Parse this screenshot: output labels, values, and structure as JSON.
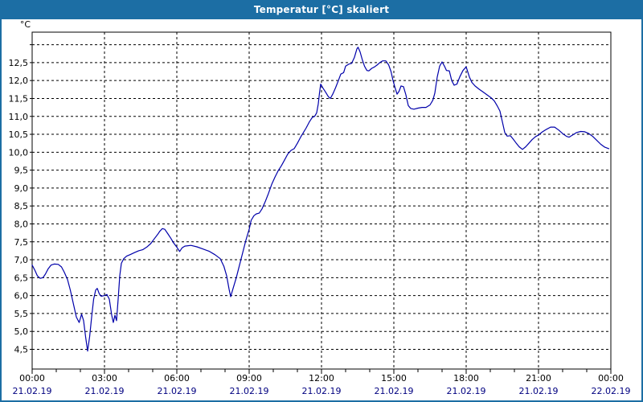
{
  "window": {
    "title": "Temperatur [°C] skaliert"
  },
  "colors": {
    "window_chrome": "#1c6ea4",
    "titlebar_text": "#ffffff",
    "plot_background": "#ffffff",
    "grid": "#000000",
    "axis_text": "#000000",
    "date_text": "#000080",
    "series_line": "#0000aa"
  },
  "chart_data": {
    "type": "line",
    "title": "Temperatur [°C] skaliert",
    "unit_label": "°C",
    "grid": "dashed",
    "legend": "none",
    "x_axis": {
      "range_hours": [
        0,
        24
      ],
      "major_tick_hours": 3,
      "minor_tick_hours": 1,
      "ticks": [
        {
          "hour": 0,
          "time": "00:00",
          "date": "21.02.19"
        },
        {
          "hour": 3,
          "time": "03:00",
          "date": "21.02.19"
        },
        {
          "hour": 6,
          "time": "06:00",
          "date": "21.02.19"
        },
        {
          "hour": 9,
          "time": "09:00",
          "date": "21.02.19"
        },
        {
          "hour": 12,
          "time": "12:00",
          "date": "21.02.19"
        },
        {
          "hour": 15,
          "time": "15:00",
          "date": "21.02.19"
        },
        {
          "hour": 18,
          "time": "18:00",
          "date": "21.02.19"
        },
        {
          "hour": 21,
          "time": "21:00",
          "date": "21.02.19"
        },
        {
          "hour": 24,
          "time": "00:00",
          "date": "22.02.19"
        }
      ]
    },
    "y_axis": {
      "range": [
        3.95,
        13.35
      ],
      "gridline_step": 0.5,
      "gridlines": [
        4.5,
        5.0,
        5.5,
        6.0,
        6.5,
        7.0,
        7.5,
        8.0,
        8.5,
        9.0,
        9.5,
        10.0,
        10.5,
        11.0,
        11.5,
        12.0,
        12.5,
        13.0
      ],
      "decimal_separator": ",",
      "tick_labels": [
        {
          "value": 12.5,
          "label": "12,5"
        },
        {
          "value": 12.0,
          "label": "12,0"
        },
        {
          "value": 11.5,
          "label": "11,5"
        },
        {
          "value": 11.0,
          "label": "11,0"
        },
        {
          "value": 10.5,
          "label": "10,5"
        },
        {
          "value": 10.0,
          "label": "10,0"
        },
        {
          "value": 9.5,
          "label": "9,5"
        },
        {
          "value": 9.0,
          "label": "9,0"
        },
        {
          "value": 8.5,
          "label": "8,5"
        },
        {
          "value": 8.0,
          "label": "8,0"
        },
        {
          "value": 7.5,
          "label": "7,5"
        },
        {
          "value": 7.0,
          "label": "7,0"
        },
        {
          "value": 6.5,
          "label": "6,5"
        },
        {
          "value": 6.0,
          "label": "6,0"
        },
        {
          "value": 5.5,
          "label": "5,5"
        },
        {
          "value": 5.0,
          "label": "5,0"
        },
        {
          "value": 4.5,
          "label": "4,5"
        }
      ]
    },
    "series": [
      {
        "name": "Temperatur",
        "color": "#0000aa",
        "points_format": "[minutes_since_00:00, temperature_celsius]",
        "points": [
          [
            0,
            6.85
          ],
          [
            7,
            6.7
          ],
          [
            13,
            6.55
          ],
          [
            20,
            6.48
          ],
          [
            27,
            6.5
          ],
          [
            33,
            6.6
          ],
          [
            40,
            6.75
          ],
          [
            47,
            6.85
          ],
          [
            55,
            6.88
          ],
          [
            65,
            6.87
          ],
          [
            73,
            6.8
          ],
          [
            80,
            6.65
          ],
          [
            88,
            6.45
          ],
          [
            95,
            6.15
          ],
          [
            102,
            5.8
          ],
          [
            110,
            5.4
          ],
          [
            117,
            5.25
          ],
          [
            123,
            5.48
          ],
          [
            128,
            5.3
          ],
          [
            133,
            4.85
          ],
          [
            138,
            4.45
          ],
          [
            143,
            4.85
          ],
          [
            148,
            5.4
          ],
          [
            153,
            5.9
          ],
          [
            158,
            6.15
          ],
          [
            162,
            6.2
          ],
          [
            167,
            6.05
          ],
          [
            172,
            5.98
          ],
          [
            180,
            6.0
          ],
          [
            186,
            6.03
          ],
          [
            192,
            5.9
          ],
          [
            198,
            5.45
          ],
          [
            202,
            5.25
          ],
          [
            206,
            5.45
          ],
          [
            210,
            5.3
          ],
          [
            214,
            5.9
          ],
          [
            218,
            6.55
          ],
          [
            222,
            6.9
          ],
          [
            228,
            7.03
          ],
          [
            235,
            7.1
          ],
          [
            245,
            7.15
          ],
          [
            255,
            7.2
          ],
          [
            265,
            7.25
          ],
          [
            275,
            7.28
          ],
          [
            285,
            7.35
          ],
          [
            295,
            7.45
          ],
          [
            305,
            7.6
          ],
          [
            312,
            7.7
          ],
          [
            318,
            7.8
          ],
          [
            324,
            7.87
          ],
          [
            330,
            7.85
          ],
          [
            338,
            7.72
          ],
          [
            345,
            7.6
          ],
          [
            352,
            7.47
          ],
          [
            360,
            7.35
          ],
          [
            367,
            7.23
          ],
          [
            373,
            7.33
          ],
          [
            380,
            7.38
          ],
          [
            395,
            7.4
          ],
          [
            410,
            7.36
          ],
          [
            425,
            7.3
          ],
          [
            440,
            7.24
          ],
          [
            455,
            7.14
          ],
          [
            468,
            7.03
          ],
          [
            477,
            6.82
          ],
          [
            484,
            6.55
          ],
          [
            490,
            6.18
          ],
          [
            494,
            5.97
          ],
          [
            500,
            6.2
          ],
          [
            508,
            6.5
          ],
          [
            516,
            6.85
          ],
          [
            524,
            7.2
          ],
          [
            532,
            7.55
          ],
          [
            540,
            7.85
          ],
          [
            545,
            8.1
          ],
          [
            552,
            8.23
          ],
          [
            558,
            8.28
          ],
          [
            565,
            8.3
          ],
          [
            572,
            8.42
          ],
          [
            580,
            8.62
          ],
          [
            588,
            8.85
          ],
          [
            596,
            9.1
          ],
          [
            604,
            9.3
          ],
          [
            612,
            9.48
          ],
          [
            620,
            9.62
          ],
          [
            628,
            9.78
          ],
          [
            636,
            9.95
          ],
          [
            644,
            10.05
          ],
          [
            652,
            10.1
          ],
          [
            660,
            10.25
          ],
          [
            668,
            10.42
          ],
          [
            675,
            10.55
          ],
          [
            682,
            10.68
          ],
          [
            690,
            10.85
          ],
          [
            697,
            10.97
          ],
          [
            703,
            11.0
          ],
          [
            708,
            11.1
          ],
          [
            712,
            11.35
          ],
          [
            715,
            11.65
          ],
          [
            718,
            11.9
          ],
          [
            723,
            11.8
          ],
          [
            730,
            11.68
          ],
          [
            737,
            11.55
          ],
          [
            742,
            11.5
          ],
          [
            748,
            11.62
          ],
          [
            755,
            11.8
          ],
          [
            762,
            12.0
          ],
          [
            768,
            12.18
          ],
          [
            775,
            12.22
          ],
          [
            780,
            12.4
          ],
          [
            788,
            12.46
          ],
          [
            795,
            12.48
          ],
          [
            802,
            12.65
          ],
          [
            808,
            12.88
          ],
          [
            811,
            12.93
          ],
          [
            816,
            12.8
          ],
          [
            821,
            12.6
          ],
          [
            827,
            12.4
          ],
          [
            833,
            12.28
          ],
          [
            838,
            12.27
          ],
          [
            845,
            12.34
          ],
          [
            852,
            12.38
          ],
          [
            858,
            12.43
          ],
          [
            865,
            12.5
          ],
          [
            872,
            12.55
          ],
          [
            880,
            12.55
          ],
          [
            887,
            12.44
          ],
          [
            893,
            12.25
          ],
          [
            898,
            12.0
          ],
          [
            903,
            11.8
          ],
          [
            908,
            11.62
          ],
          [
            913,
            11.7
          ],
          [
            918,
            11.85
          ],
          [
            924,
            11.83
          ],
          [
            930,
            11.6
          ],
          [
            936,
            11.3
          ],
          [
            942,
            11.22
          ],
          [
            950,
            11.2
          ],
          [
            960,
            11.23
          ],
          [
            970,
            11.25
          ],
          [
            980,
            11.25
          ],
          [
            990,
            11.32
          ],
          [
            997,
            11.45
          ],
          [
            1002,
            11.65
          ],
          [
            1008,
            12.1
          ],
          [
            1014,
            12.4
          ],
          [
            1020,
            12.52
          ],
          [
            1026,
            12.4
          ],
          [
            1031,
            12.28
          ],
          [
            1038,
            12.27
          ],
          [
            1044,
            12.0
          ],
          [
            1050,
            11.87
          ],
          [
            1057,
            11.9
          ],
          [
            1064,
            12.1
          ],
          [
            1072,
            12.28
          ],
          [
            1080,
            12.38
          ],
          [
            1088,
            12.1
          ],
          [
            1094,
            11.95
          ],
          [
            1102,
            11.85
          ],
          [
            1112,
            11.76
          ],
          [
            1122,
            11.68
          ],
          [
            1132,
            11.6
          ],
          [
            1142,
            11.52
          ],
          [
            1150,
            11.43
          ],
          [
            1157,
            11.3
          ],
          [
            1164,
            11.15
          ],
          [
            1170,
            10.85
          ],
          [
            1176,
            10.55
          ],
          [
            1182,
            10.45
          ],
          [
            1190,
            10.46
          ],
          [
            1196,
            10.38
          ],
          [
            1204,
            10.26
          ],
          [
            1212,
            10.15
          ],
          [
            1220,
            10.08
          ],
          [
            1228,
            10.15
          ],
          [
            1236,
            10.25
          ],
          [
            1244,
            10.35
          ],
          [
            1252,
            10.43
          ],
          [
            1260,
            10.48
          ],
          [
            1270,
            10.57
          ],
          [
            1280,
            10.64
          ],
          [
            1290,
            10.7
          ],
          [
            1300,
            10.7
          ],
          [
            1310,
            10.62
          ],
          [
            1320,
            10.52
          ],
          [
            1330,
            10.44
          ],
          [
            1336,
            10.42
          ],
          [
            1345,
            10.48
          ],
          [
            1355,
            10.55
          ],
          [
            1365,
            10.58
          ],
          [
            1375,
            10.57
          ],
          [
            1385,
            10.52
          ],
          [
            1395,
            10.44
          ],
          [
            1405,
            10.33
          ],
          [
            1415,
            10.22
          ],
          [
            1425,
            10.14
          ],
          [
            1435,
            10.1
          ]
        ]
      }
    ]
  }
}
